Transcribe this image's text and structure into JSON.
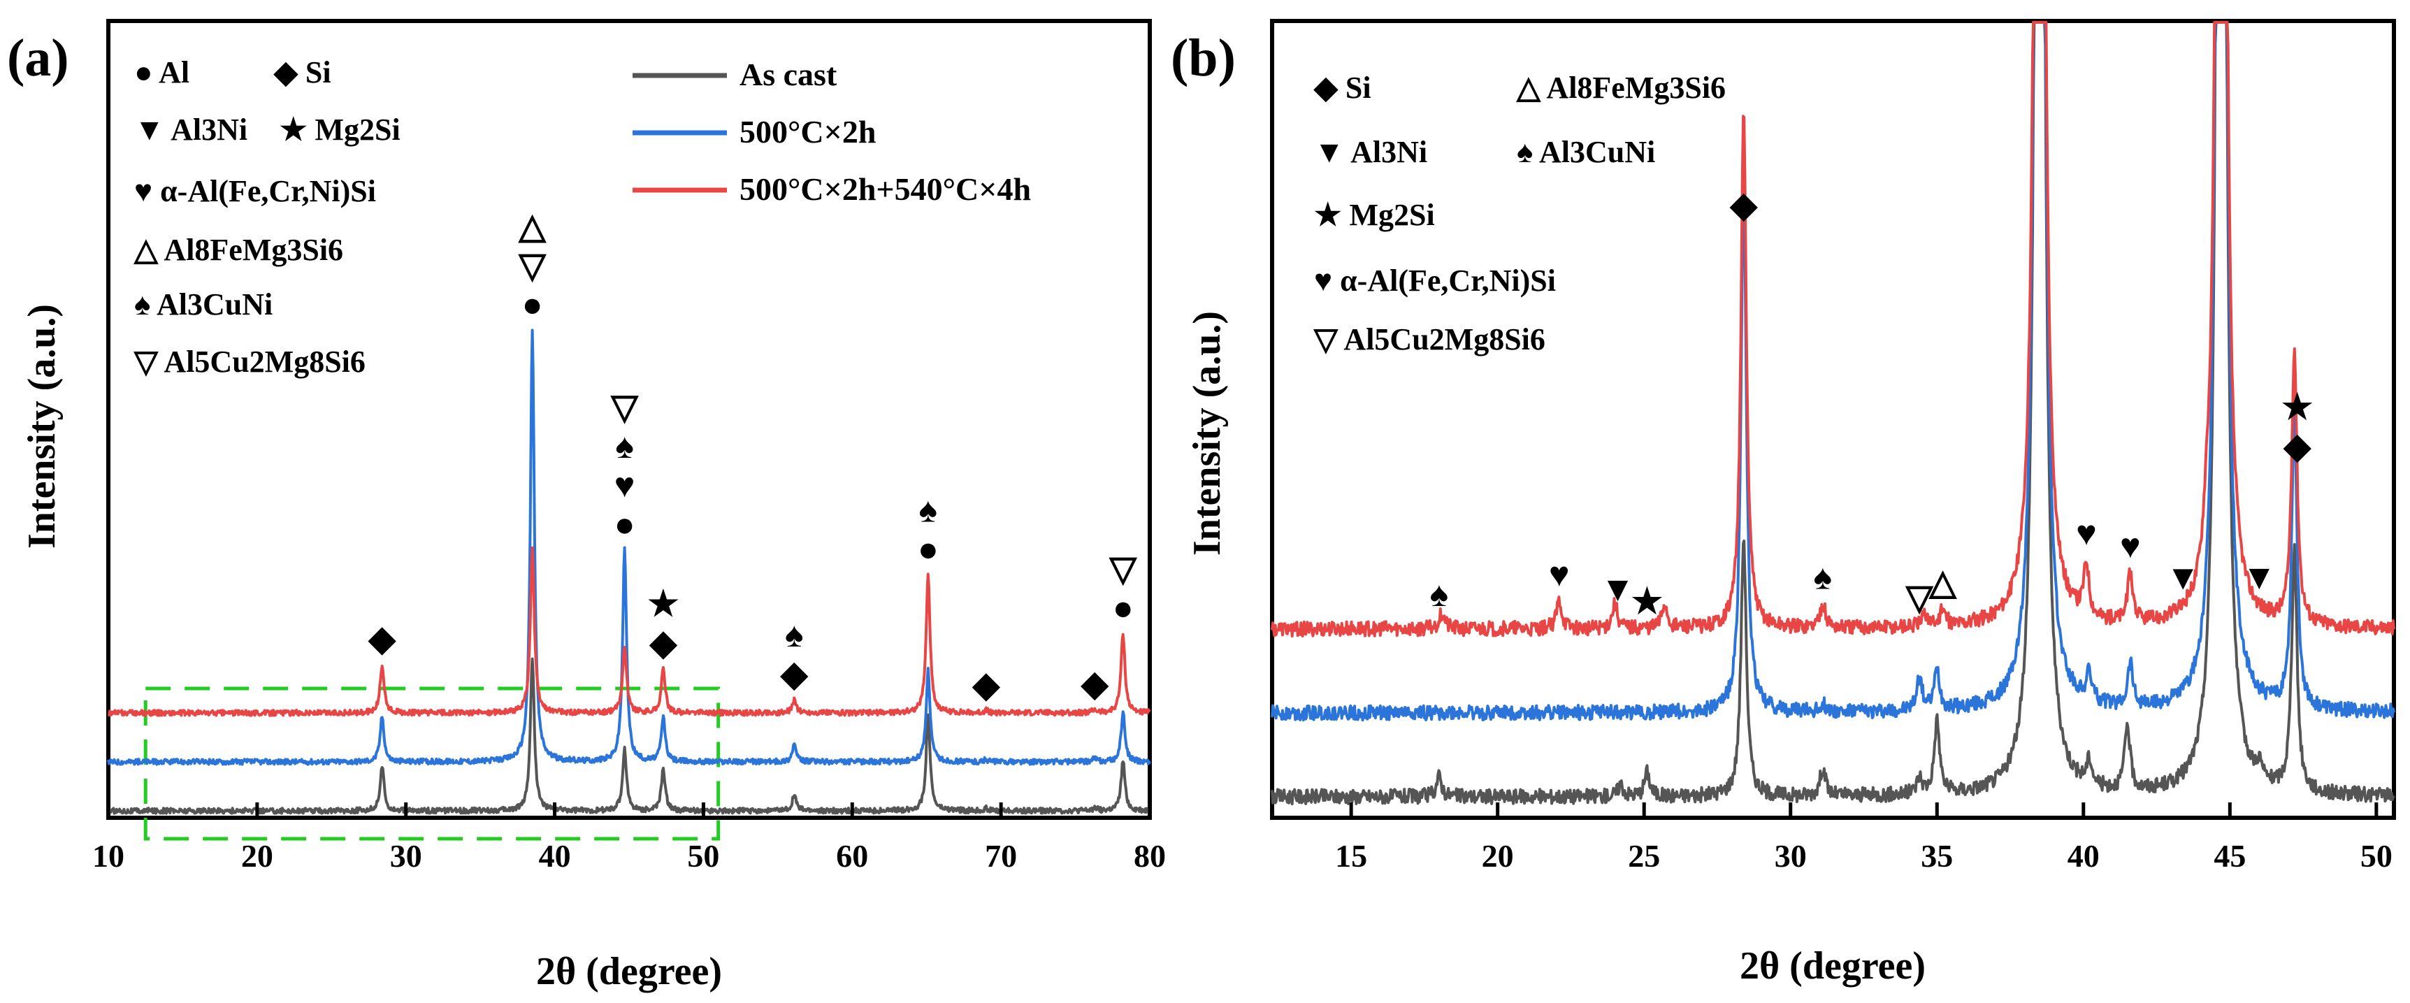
{
  "chart_data": [
    {
      "panel": "(a)",
      "type": "line",
      "xlabel": "2θ (degree)",
      "ylabel": "Intensity (a.u.)",
      "xlim": [
        10,
        80
      ],
      "xticks": [
        10,
        20,
        30,
        40,
        50,
        60,
        70,
        80
      ],
      "series": [
        {
          "name": "As cast",
          "color": "#555555",
          "offset": 0,
          "peaks": [
            [
              28.4,
              150
            ],
            [
              38.5,
              520
            ],
            [
              44.7,
              210
            ],
            [
              47.3,
              140
            ],
            [
              56.1,
              55
            ],
            [
              65.1,
              330
            ],
            [
              69.0,
              8
            ],
            [
              76.3,
              10
            ],
            [
              78.2,
              170
            ]
          ]
        },
        {
          "name": "500°C×2h",
          "color": "#2b74d9",
          "offset": 1,
          "peaks": [
            [
              28.4,
              155
            ],
            [
              38.5,
              1470
            ],
            [
              44.7,
              720
            ],
            [
              47.3,
              150
            ],
            [
              56.1,
              60
            ],
            [
              65.1,
              310
            ],
            [
              69.0,
              8
            ],
            [
              76.3,
              12
            ],
            [
              78.2,
              165
            ]
          ]
        },
        {
          "name": "500°C×2h+540°C×4h",
          "color": "#e84545",
          "offset": 2,
          "peaks": [
            [
              28.4,
              165
            ],
            [
              38.5,
              560
            ],
            [
              44.7,
              230
            ],
            [
              47.3,
              150
            ],
            [
              56.1,
              45
            ],
            [
              65.1,
              470
            ],
            [
              69.0,
              8
            ],
            [
              76.3,
              10
            ],
            [
              78.2,
              270
            ]
          ]
        }
      ],
      "legend_symbols": [
        {
          "symbol": "●",
          "label": "Al"
        },
        {
          "symbol": "◆",
          "label": "Si"
        },
        {
          "symbol": "▼",
          "label": "Al3Ni"
        },
        {
          "symbol": "★",
          "label": "Mg2Si"
        },
        {
          "symbol": "♥",
          "label": "α-Al(Fe,Cr,Ni)Si"
        },
        {
          "symbol": "△",
          "label": "Al8FeMg3Si6"
        },
        {
          "symbol": "♠",
          "label": "Al3CuNi"
        },
        {
          "symbol": "▽",
          "label": "Al5Cu2Mg8Si6"
        }
      ],
      "peak_annotations": [
        {
          "x": 28.4,
          "symbols": [
            "◆"
          ]
        },
        {
          "x": 38.5,
          "symbols": [
            "●",
            "▽",
            "△"
          ]
        },
        {
          "x": 44.7,
          "symbols": [
            "●",
            "♥",
            "♠",
            "▽"
          ]
        },
        {
          "x": 47.3,
          "symbols": [
            "◆",
            "★"
          ]
        },
        {
          "x": 56.1,
          "symbols": [
            "◆",
            "♠"
          ]
        },
        {
          "x": 65.1,
          "symbols": [
            "●",
            "♠"
          ]
        },
        {
          "x": 69.0,
          "symbols": [
            "◆"
          ]
        },
        {
          "x": 76.3,
          "symbols": [
            "◆"
          ]
        },
        {
          "x": 78.2,
          "symbols": [
            "●",
            "▽"
          ]
        }
      ],
      "zoom_box_range": [
        12.5,
        51
      ]
    },
    {
      "panel": "(b)",
      "type": "line",
      "xlabel": "2θ (degree)",
      "ylabel": "Intensity (a.u.)",
      "xlim": [
        12.3,
        50.6
      ],
      "xticks": [
        15,
        20,
        25,
        30,
        35,
        40,
        45,
        50
      ],
      "series": [
        {
          "name": "As cast",
          "color": "#555555",
          "offset": 0,
          "peaks": [
            [
              18.0,
              25
            ],
            [
              24.2,
              15
            ],
            [
              25.1,
              30
            ],
            [
              28.4,
              320
            ],
            [
              31.1,
              35
            ],
            [
              34.4,
              20
            ],
            [
              35.0,
              90
            ],
            [
              38.5,
              4000
            ],
            [
              40.2,
              30
            ],
            [
              41.5,
              80
            ],
            [
              44.7,
              4000
            ],
            [
              46.0,
              20
            ],
            [
              47.2,
              300
            ]
          ]
        },
        {
          "name": "500°C×2h",
          "color": "#2b74d9",
          "offset": 1,
          "peaks": [
            [
              28.4,
              660
            ],
            [
              31.1,
              10
            ],
            [
              34.4,
              40
            ],
            [
              35.0,
              50
            ],
            [
              38.5,
              4000
            ],
            [
              40.2,
              35
            ],
            [
              41.6,
              55
            ],
            [
              44.7,
              4000
            ],
            [
              47.2,
              370
            ]
          ]
        },
        {
          "name": "500°C×2h+540°C×4h",
          "color": "#e84545",
          "offset": 2,
          "peaks": [
            [
              18.1,
              20
            ],
            [
              22.1,
              35
            ],
            [
              24.0,
              30
            ],
            [
              25.7,
              30
            ],
            [
              28.4,
              640
            ],
            [
              31.1,
              30
            ],
            [
              34.6,
              15
            ],
            [
              35.2,
              20
            ],
            [
              38.5,
              4000
            ],
            [
              40.1,
              65
            ],
            [
              41.6,
              60
            ],
            [
              44.2,
              40
            ],
            [
              44.7,
              4000
            ],
            [
              47.2,
              340
            ]
          ]
        }
      ],
      "legend_symbols": [
        {
          "symbol": "◆",
          "label": "Si"
        },
        {
          "symbol": "△",
          "label": "Al8FeMg3Si6"
        },
        {
          "symbol": "▼",
          "label": "Al3Ni"
        },
        {
          "symbol": "♠",
          "label": "Al3CuNi"
        },
        {
          "symbol": "★",
          "label": "Mg2Si"
        },
        {
          "symbol": "♥",
          "label": "α-Al(Fe,Cr,Ni)Si"
        },
        {
          "symbol": "▽",
          "label": "Al5Cu2Mg8Si6"
        }
      ],
      "peak_annotations": [
        {
          "x": 18.0,
          "symbols": [
            "♠"
          ]
        },
        {
          "x": 22.1,
          "symbols": [
            "♥"
          ]
        },
        {
          "x": 24.1,
          "symbols": [
            "▼"
          ]
        },
        {
          "x": 25.1,
          "symbols": [
            "★"
          ]
        },
        {
          "x": 28.4,
          "symbols": [
            "◆"
          ]
        },
        {
          "x": 31.1,
          "symbols": [
            "♠"
          ]
        },
        {
          "x": 34.4,
          "symbols": [
            "▽"
          ]
        },
        {
          "x": 35.2,
          "symbols": [
            "△"
          ]
        },
        {
          "x": 40.1,
          "symbols": [
            "♥"
          ]
        },
        {
          "x": 41.6,
          "symbols": [
            "♥"
          ]
        },
        {
          "x": 43.4,
          "symbols": [
            "▼"
          ]
        },
        {
          "x": 46.0,
          "symbols": [
            "▼"
          ]
        },
        {
          "x": 47.3,
          "symbols": [
            "◆",
            "★"
          ]
        }
      ]
    }
  ]
}
